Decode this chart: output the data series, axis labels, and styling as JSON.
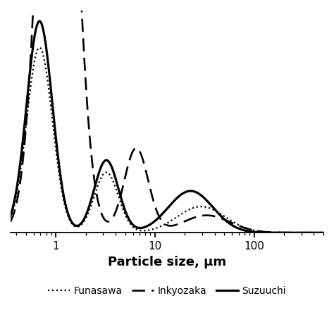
{
  "title": "",
  "xlabel": "Particle size, μm",
  "ylabel": "",
  "xlim_log": [
    0.35,
    500
  ],
  "ylim": [
    0,
    1.05
  ],
  "background_color": "#ffffff",
  "line_color": "#000000",
  "legend_entries": [
    "Funasawa",
    "Inkyozaka",
    "Suzuuchi"
  ],
  "xlabel_fontsize": 13,
  "xlabel_fontweight": "bold",
  "xticks": [
    1,
    10,
    100
  ],
  "xtick_labels": [
    "1",
    "10",
    "100"
  ]
}
